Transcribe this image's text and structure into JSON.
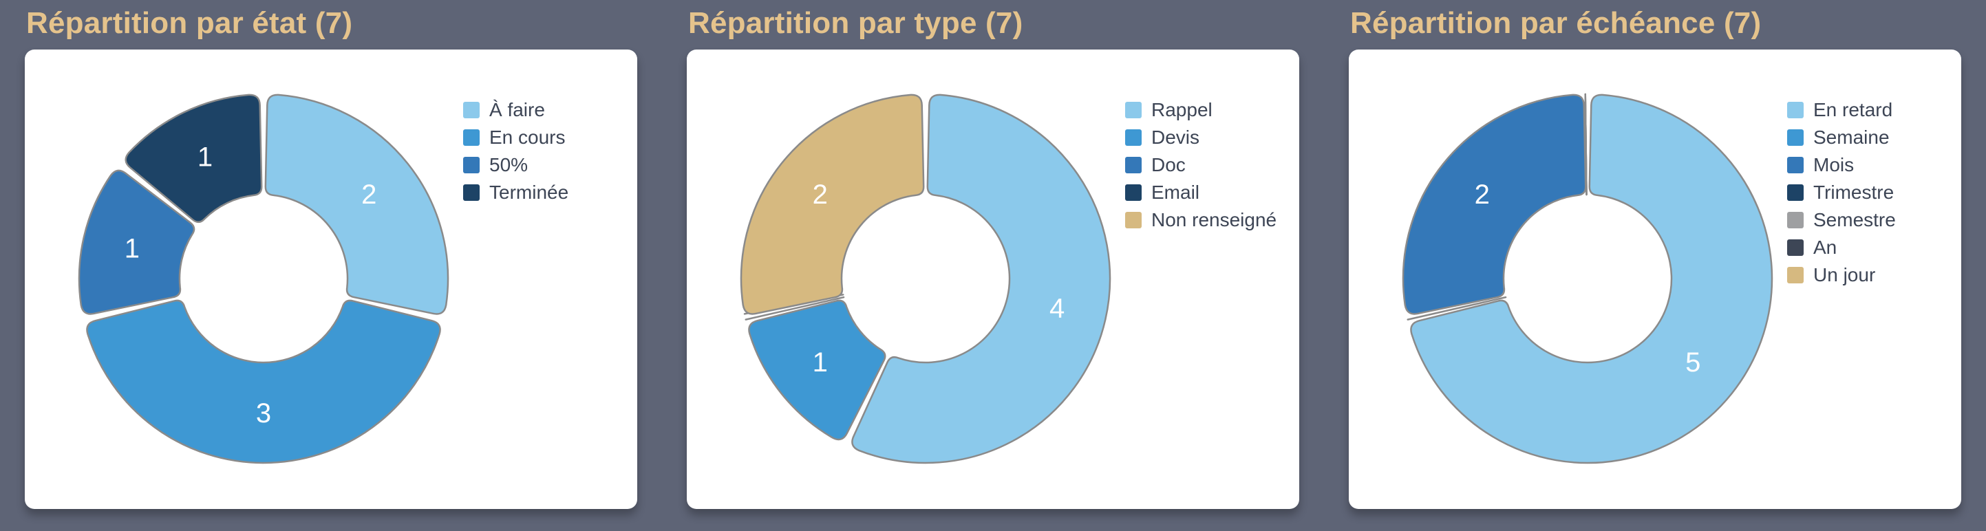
{
  "page": {
    "background_color": "#5E6476",
    "card_background_color": "#FFFFFF",
    "title_color": "#E5C38C",
    "legend_text_color": "#3D4555",
    "slice_stroke_color": "#8A8A8A",
    "slice_label_color": "#FFFFFF"
  },
  "chart_data": [
    {
      "type": "pie",
      "title": "Répartition par état (7)",
      "total": 7,
      "legend_position": "right",
      "slices": [
        {
          "label": "À faire",
          "value": 2,
          "color": "#8BC9EB"
        },
        {
          "label": "En cours",
          "value": 3,
          "color": "#3E98D3"
        },
        {
          "label": "50%",
          "value": 1,
          "color": "#3478B8"
        },
        {
          "label": "Terminée",
          "value": 1,
          "color": "#1D4366"
        }
      ]
    },
    {
      "type": "pie",
      "title": "Répartition par type (7)",
      "total": 7,
      "legend_position": "right",
      "slices": [
        {
          "label": "Rappel",
          "value": 4,
          "color": "#8BC9EB"
        },
        {
          "label": "Devis",
          "value": 1,
          "color": "#3E98D3"
        },
        {
          "label": "Doc",
          "value": 0,
          "color": "#3478B8"
        },
        {
          "label": "Email",
          "value": 0,
          "color": "#1D4366"
        },
        {
          "label": "Non renseigné",
          "value": 2,
          "color": "#D6B980"
        }
      ]
    },
    {
      "type": "pie",
      "title": "Répartition par échéance (7)",
      "total": 7,
      "legend_position": "right",
      "slices": [
        {
          "label": "En retard",
          "value": 5,
          "color": "#8BC9EB"
        },
        {
          "label": "Semaine",
          "value": 0,
          "color": "#3E98D3"
        },
        {
          "label": "Mois",
          "value": 2,
          "color": "#3478B8"
        },
        {
          "label": "Trimestre",
          "value": 0,
          "color": "#1D4366"
        },
        {
          "label": "Semestre",
          "value": 0,
          "color": "#9E9FA1"
        },
        {
          "label": "An",
          "value": 0,
          "color": "#3D4656"
        },
        {
          "label": "Un jour",
          "value": 0,
          "color": "#D6B980"
        }
      ]
    }
  ]
}
